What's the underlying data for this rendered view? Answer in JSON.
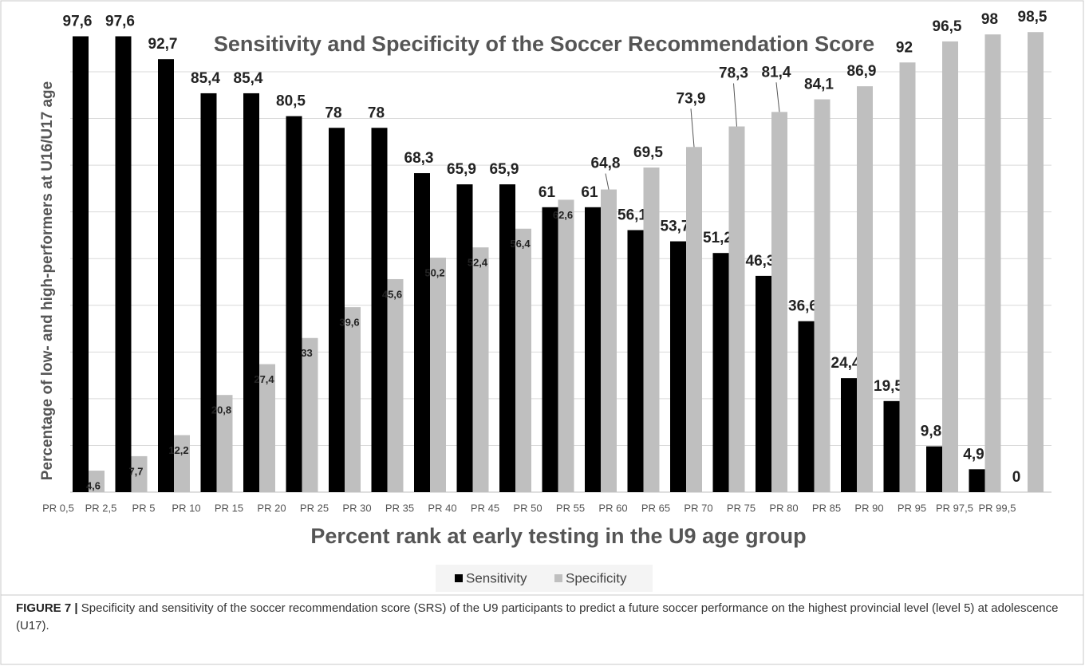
{
  "chart_data": {
    "type": "bar",
    "title": "Sensitivity and Specificity  of the Soccer Recommendation Score",
    "x_label": "Percent rank at early testing in the U9  age group",
    "y_label": "Percentage of low- and high-performers at U16/U17 age",
    "categories": [
      "PR 0,5",
      "PR 2,5",
      "PR 5",
      "PR 10",
      "PR 15",
      "PR 20",
      "PR 25",
      "PR 30",
      "PR 35",
      "PR 40",
      "PR 45",
      "PR 50",
      "PR 55",
      "PR 60",
      "PR 65",
      "PR 70",
      "PR 75",
      "PR 80",
      "PR 85",
      "PR 90",
      "PR 95",
      "PR 97,5",
      "PR 99,5"
    ],
    "series": [
      {
        "name": "Sensitivity",
        "color": "#000000",
        "values": [
          97.6,
          97.6,
          92.7,
          85.4,
          85.4,
          80.5,
          78,
          78,
          68.3,
          65.9,
          65.9,
          61,
          61,
          56.1,
          53.7,
          51.2,
          46.3,
          36.6,
          24.4,
          19.5,
          9.8,
          4.9,
          0
        ],
        "value_labels": [
          "97,6",
          "97,6",
          "92,7",
          "85,4",
          "85,4",
          "80,5",
          "78",
          "78",
          "68,3",
          "65,9",
          "65,9",
          "61",
          "61",
          "56,1",
          "53,7",
          "51,2",
          "46,3",
          "36,6",
          "24,4",
          "19,5",
          "9,8",
          "4,9",
          "0"
        ]
      },
      {
        "name": "Specificity",
        "color": "#bfbfbf",
        "values": [
          4.6,
          7.7,
          12.2,
          20.8,
          27.4,
          33,
          39.6,
          45.6,
          50.2,
          52.4,
          56.4,
          62.6,
          64.8,
          69.5,
          73.9,
          78.3,
          81.4,
          84.1,
          86.9,
          92,
          96.5,
          98,
          98.5
        ],
        "value_labels": [
          "4,6",
          "7,7",
          "12,2",
          "20,8",
          "27,4",
          "33",
          "39,6",
          "45,6",
          "50,2",
          "52,4",
          "56,4",
          "62,6",
          "64,8",
          "69,5",
          "73,9",
          "78,3",
          "81,4",
          "84,1",
          "86,9",
          "92",
          "96,5",
          "98",
          "98,5"
        ]
      }
    ],
    "ylim": [
      0,
      100
    ],
    "yticks": [
      0,
      10,
      20,
      30,
      40,
      50,
      60,
      70,
      80,
      90,
      100
    ],
    "grid": true,
    "legend": "bottom",
    "caption_label": "FIGURE 7 |",
    "caption": "Specificity and sensitivity of the soccer recommendation score (SRS) of the U9 participants to predict a future soccer performance on the highest provincial level (level 5) at adolescence (U17)."
  }
}
